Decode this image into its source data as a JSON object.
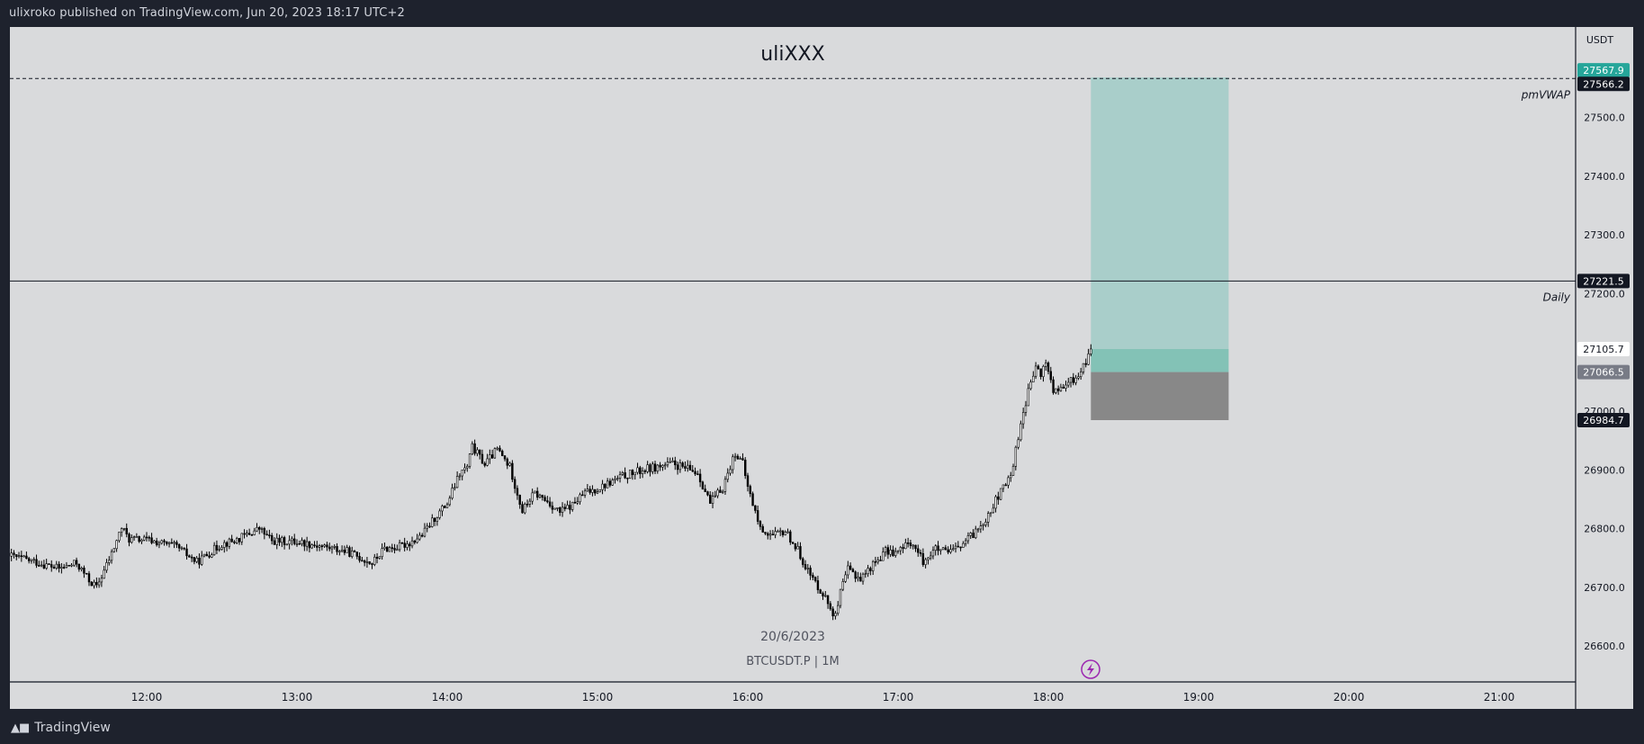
{
  "header": {
    "published_text": "ulixroko published on TradingView.com, Jun 20, 2023 18:17 UTC+2"
  },
  "chart": {
    "title": "uliXXX",
    "currency": "USDT",
    "date_label": "20/6/2023",
    "symbol_label": "BTCUSDT.P | 1M",
    "lines": [
      {
        "label": "pmVWAP",
        "price": 27566.2,
        "style": "dashed"
      },
      {
        "label": "Daily",
        "price": 27221.5,
        "style": "solid"
      }
    ],
    "price_tags": [
      {
        "value": "27567.9",
        "price": 27567.9,
        "bg": "#26a69a",
        "fg": "#ffffff"
      },
      {
        "value": "27566.2",
        "price": 27566.2,
        "bg": "#131722",
        "fg": "#ffffff"
      },
      {
        "value": "27221.5",
        "price": 27221.5,
        "bg": "#131722",
        "fg": "#ffffff"
      },
      {
        "value": "27105.7",
        "price": 27105.7,
        "bg": "#ffffff",
        "fg": "#131722"
      },
      {
        "value": "27066.5",
        "price": 27066.5,
        "bg": "#787b86",
        "fg": "#ffffff"
      },
      {
        "value": "26984.7",
        "price": 26984.7,
        "bg": "#131722",
        "fg": "#ffffff"
      }
    ],
    "position_box": {
      "start_time": "18:17",
      "end_time": "19:12",
      "target": 27567.9,
      "entry": 27105.7,
      "current": 27066.5,
      "stop": 26984.7
    },
    "colors": {
      "background": "#d9dadc",
      "candles": "#000000",
      "profit_zone": "#a9ceca",
      "profit_dark": "#83c2b6",
      "loss_zone": "#888888",
      "alert_icon": "#9c27b0"
    },
    "icons": [
      "lightning-alert-icon"
    ]
  },
  "footer": {
    "brand": "TradingView",
    "logo": "tradingview-logo-icon"
  },
  "chart_data": {
    "type": "candlestick",
    "symbol": "BTCUSDT.P",
    "interval": "1M",
    "y_unit": "USDT",
    "ylim": [
      26550,
      27645
    ],
    "xlim": [
      "11:06",
      "21:32"
    ],
    "y_ticks": [
      26600,
      26700,
      26800,
      26900,
      27000,
      27100,
      27200,
      27300,
      27400,
      27500
    ],
    "x_ticks": [
      "12:00",
      "13:00",
      "14:00",
      "15:00",
      "16:00",
      "17:00",
      "18:00",
      "19:00",
      "20:00",
      "21:00"
    ],
    "price_path": {
      "times": [
        "11:06",
        "11:15",
        "11:25",
        "11:32",
        "11:37",
        "11:40",
        "11:46",
        "11:50",
        "11:53",
        "12:00",
        "12:12",
        "12:20",
        "12:30",
        "12:35",
        "12:45",
        "12:50",
        "12:55",
        "13:00",
        "13:10",
        "13:20",
        "13:30",
        "13:35",
        "13:40",
        "13:45",
        "13:50",
        "13:55",
        "14:00",
        "14:05",
        "14:08",
        "14:10",
        "14:15",
        "14:20",
        "14:25",
        "14:30",
        "14:33",
        "14:35",
        "14:40",
        "14:45",
        "14:50",
        "14:55",
        "15:00",
        "15:10",
        "15:20",
        "15:30",
        "15:40",
        "15:45",
        "15:50",
        "15:55",
        "15:58",
        "16:00",
        "16:05",
        "16:10",
        "16:15",
        "16:20",
        "16:25",
        "16:30",
        "16:35",
        "16:37",
        "16:40",
        "16:45",
        "16:50",
        "16:55",
        "17:00",
        "17:05",
        "17:10",
        "17:15",
        "17:20",
        "17:25",
        "17:30",
        "17:35",
        "17:40",
        "17:45",
        "17:50",
        "17:53",
        "17:55",
        "17:57",
        "17:59",
        "18:02",
        "18:05",
        "18:08",
        "18:12",
        "18:15",
        "18:17"
      ],
      "prices": [
        26753,
        26744,
        26732,
        26741,
        26712,
        26700,
        26757,
        26802,
        26782,
        26781,
        26769,
        26743,
        26774,
        26779,
        26800,
        26779,
        26778,
        26778,
        26770,
        26761,
        26741,
        26766,
        26768,
        26776,
        26789,
        26818,
        26843,
        26893,
        26905,
        26939,
        26910,
        26935,
        26905,
        26830,
        26850,
        26860,
        26846,
        26828,
        26840,
        26861,
        26868,
        26889,
        26902,
        26910,
        26895,
        26843,
        26870,
        26930,
        26910,
        26871,
        26800,
        26787,
        26796,
        26763,
        26720,
        26690,
        26650,
        26690,
        26731,
        26715,
        26739,
        26761,
        26760,
        26778,
        26745,
        26765,
        26758,
        26770,
        26790,
        26818,
        26855,
        26890,
        27000,
        27048,
        27075,
        27060,
        27085,
        27035,
        27035,
        27048,
        27060,
        27085,
        27105.7
      ]
    }
  }
}
